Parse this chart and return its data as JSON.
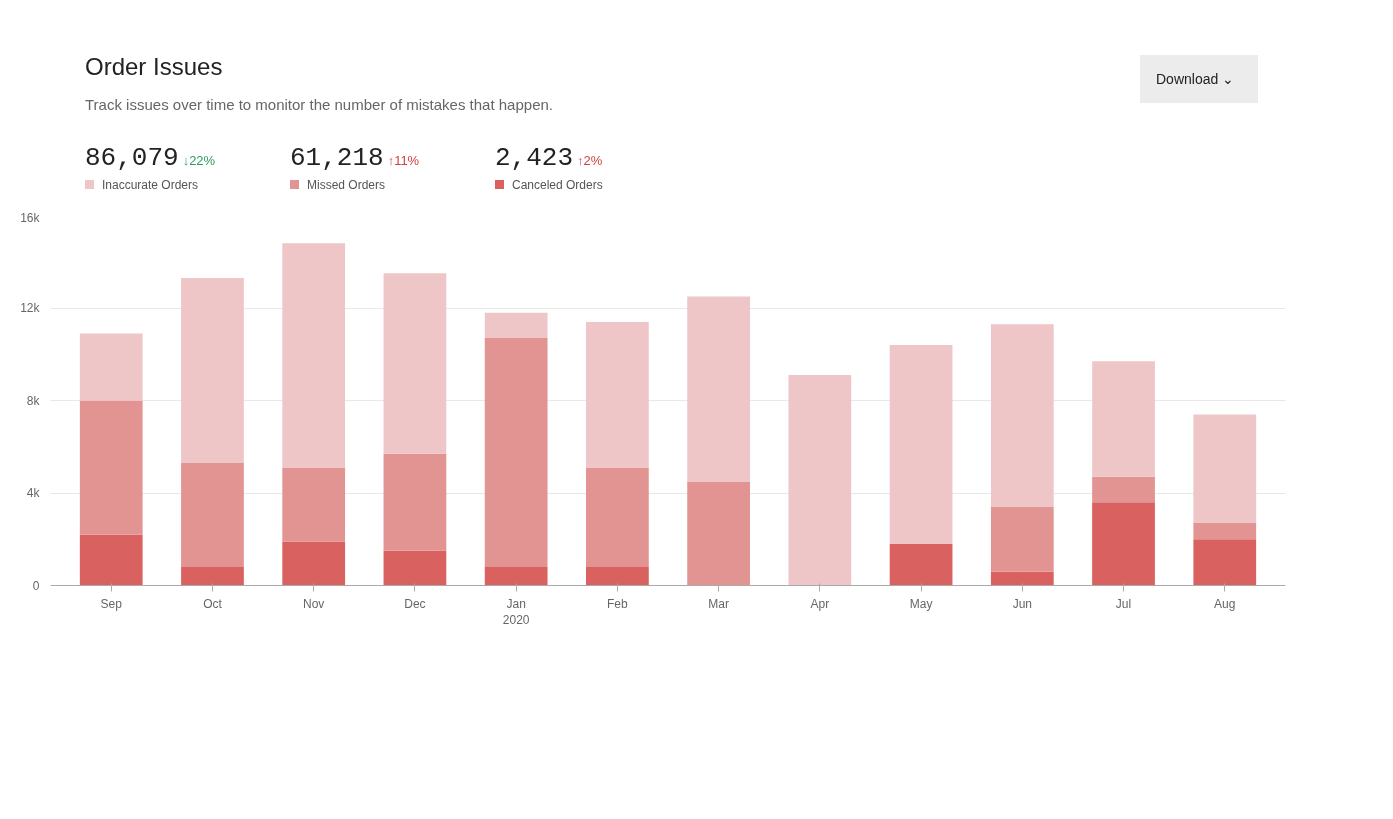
{
  "chart_data": {
    "type": "bar",
    "title": "Order Issues",
    "subtitle": "Track issues over time to monitor the number of mistakes that happen.",
    "categories": [
      "Sep",
      "Oct",
      "Nov",
      "Dec",
      "Jan\n2020",
      "Feb",
      "Mar",
      "Apr",
      "May",
      "Jun",
      "Jul",
      "Aug"
    ],
    "stacked": true,
    "series": [
      {
        "name": "Canceled Orders",
        "color": "#d9615f",
        "values": [
          2200,
          800,
          1900,
          1500,
          800,
          800,
          0,
          0,
          1800,
          600,
          3600,
          2000
        ]
      },
      {
        "name": "Missed Orders",
        "color": "#e29493",
        "values": [
          5800,
          4500,
          3200,
          4200,
          9900,
          4300,
          4500,
          0,
          0,
          2800,
          1100,
          700
        ]
      },
      {
        "name": "Inaccurate Orders",
        "color": "#efc6c7",
        "values": [
          2900,
          8000,
          9700,
          7800,
          1100,
          6300,
          8000,
          9100,
          8600,
          7900,
          5000,
          4700
        ]
      }
    ],
    "ylim": [
      0,
      16000
    ],
    "yticks": [
      0,
      {
        "value": 4000,
        "label": "4k"
      },
      {
        "value": 8000,
        "label": "8k"
      },
      {
        "value": 12000,
        "label": "12k"
      },
      {
        "value": 16000,
        "label": "16k"
      }
    ],
    "grid": "y",
    "legend": "top left",
    "annotations": [
      "86,079",
      "↓22%",
      "61,218",
      "↑11%",
      "2,423",
      "↑2%",
      "Download ⌄"
    ]
  }
}
